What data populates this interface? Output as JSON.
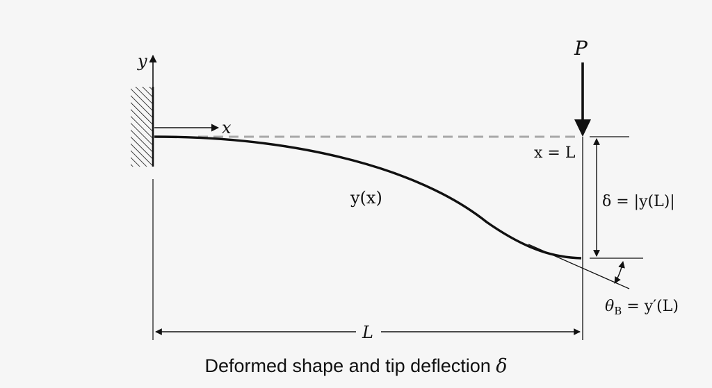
{
  "labels": {
    "y_axis": "y",
    "x_axis": "x",
    "load": "P",
    "x_equals_L": "x = L",
    "curve": "y(x)",
    "deflection": "δ = |y(L)|",
    "slope_theta": "θ",
    "slope_sub": "B",
    "slope_rest": " = y′(L)",
    "length": "L"
  },
  "caption": {
    "text": "Deformed shape and tip deflection ",
    "symbol": "δ"
  },
  "colors": {
    "ink": "#111111",
    "undeformed": "#a8a8a8",
    "background": "#f6f6f6"
  }
}
